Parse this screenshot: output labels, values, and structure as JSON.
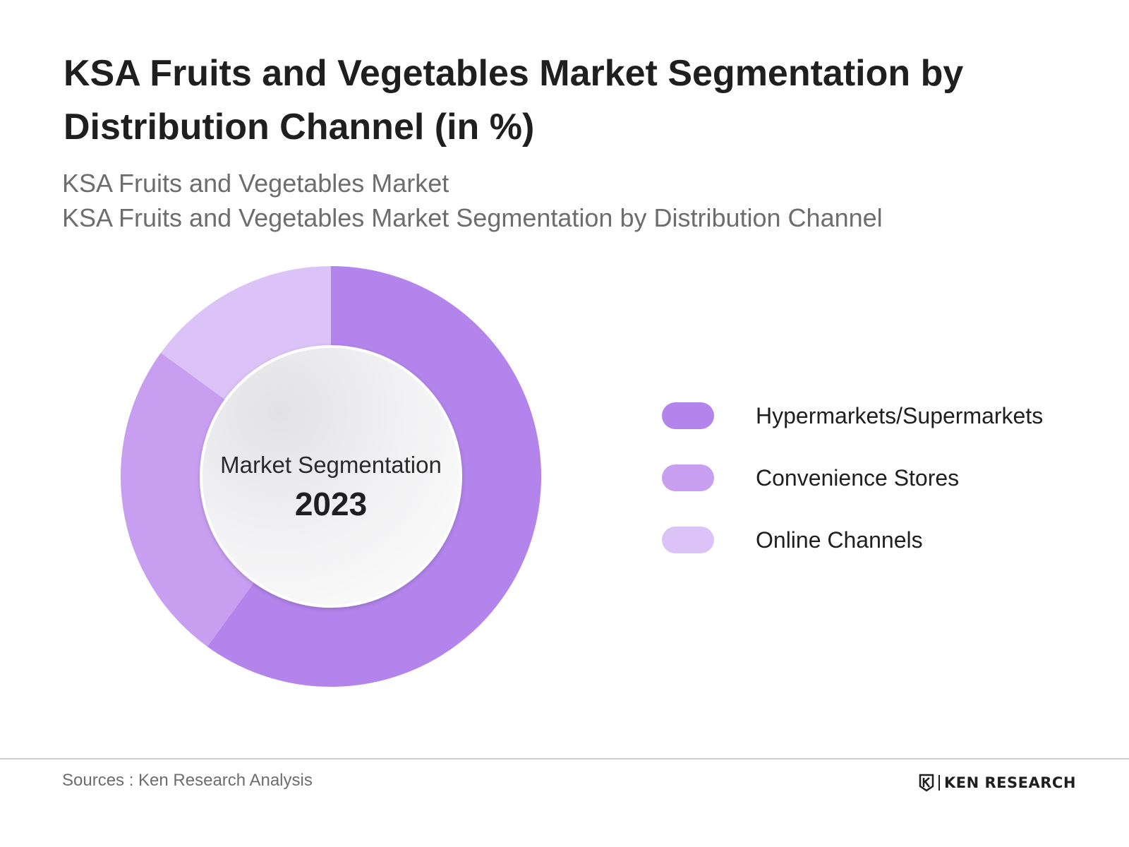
{
  "header": {
    "title": "KSA Fruits and Vegetables Market Segmentation by Distribution Channel (in %)",
    "subtitle_1": "KSA Fruits and Vegetables Market",
    "subtitle_2": "KSA Fruits and Vegetables Market Segmentation by Distribution Channel"
  },
  "chart_data": {
    "type": "pie",
    "donut": true,
    "title": "KSA Fruits and Vegetables Market Segmentation by Distribution Channel (in %)",
    "center_label": "Market Segmentation",
    "center_year": "2023",
    "categories": [
      "Hypermarkets/Supermarkets",
      "Convenience Stores",
      "Online Channels"
    ],
    "values": [
      60,
      25,
      15
    ],
    "colors": [
      "#b384ec",
      "#c89ff0",
      "#dcc3f7"
    ],
    "legend_position": "right"
  },
  "footer": {
    "source": "Sources : Ken Research Analysis",
    "brand": "KEN RESEARCH"
  }
}
